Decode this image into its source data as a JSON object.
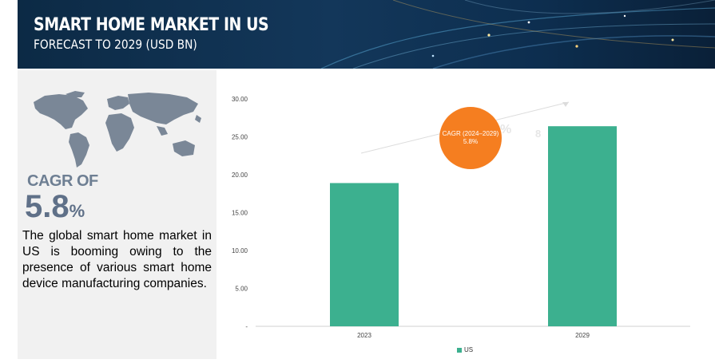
{
  "header": {
    "title": "SMART HOME MARKET IN US",
    "subtitle": "FORECAST TO 2029 (USD BN)"
  },
  "left_panel": {
    "cagr_label": "CAGR OF",
    "cagr_value": "5.8",
    "cagr_unit": "%",
    "description": "The global smart home market in US is booming owing to the presence of various smart home device manufacturing companies."
  },
  "badge": {
    "line1": "CAGR (2024–2029)",
    "line2": "5.8%"
  },
  "colors": {
    "bar": "#3cb08f",
    "badge": "#f57e20",
    "header_bg": "#13375a"
  },
  "chart_data": {
    "type": "bar",
    "categories": [
      "2023",
      "2029"
    ],
    "series": [
      {
        "name": "US",
        "values": [
          18.9,
          26.4
        ]
      }
    ],
    "y_ticks": [
      "30.00",
      "25.00",
      "20.00",
      "15.00",
      "10.00",
      "5.00",
      "-"
    ],
    "ylim": [
      0,
      30
    ],
    "legend_position": "bottom",
    "grid": false
  }
}
